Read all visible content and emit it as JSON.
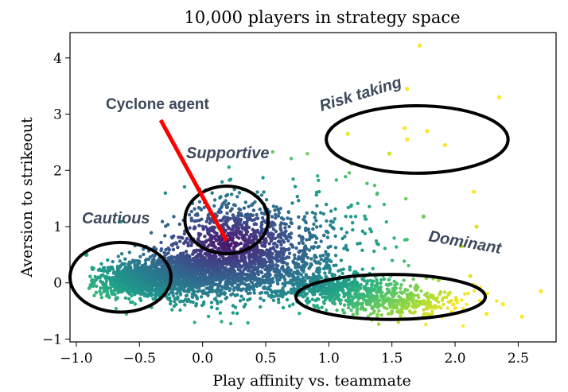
{
  "chart_data": {
    "type": "scatter",
    "title": "10,000 players in strategy space",
    "xlabel": "Play affinity vs. teammate",
    "ylabel": "Aversion to strikeout",
    "xlim": [
      -1.05,
      2.8
    ],
    "ylim": [
      -1.05,
      4.45
    ],
    "xticks": [
      -1.0,
      -0.5,
      0.0,
      0.5,
      1.0,
      1.5,
      2.0,
      2.5
    ],
    "yticks": [
      -1,
      0,
      1,
      2,
      3,
      4
    ],
    "xtick_labels": [
      "−1.0",
      "−0.5",
      "0.0",
      "0.5",
      "1.0",
      "1.5",
      "2.0",
      "2.5"
    ],
    "ytick_labels": [
      "−1",
      "0",
      "1",
      "2",
      "3",
      "4"
    ],
    "grid": false,
    "colormap": "viridis",
    "colors": {
      "annotation_text": "#3d4a5c",
      "arrow": "#ff0000",
      "ellipse": "#000000"
    },
    "regions": [
      {
        "label": "Cautious",
        "center": [
          -0.65,
          0.1
        ],
        "x_radius": 0.4,
        "y_radius": 0.62
      },
      {
        "label": "Supportive",
        "center": [
          0.19,
          1.12
        ],
        "x_radius": 0.33,
        "y_radius": 0.6
      },
      {
        "label": "Risk taking",
        "center": [
          1.7,
          2.55
        ],
        "x_radius": 0.72,
        "y_radius": 0.6
      },
      {
        "label": "Dominant",
        "center": [
          1.49,
          -0.25
        ],
        "x_radius": 0.75,
        "y_radius": 0.4
      }
    ],
    "arrow_label": "Cyclone agent",
    "arrow_target": [
      0.19,
      0.75
    ],
    "highlight_points": [
      {
        "x": 1.72,
        "y": 4.22
      },
      {
        "x": 1.62,
        "y": 3.45
      },
      {
        "x": 2.35,
        "y": 3.3
      },
      {
        "x": 1.15,
        "y": 2.65
      },
      {
        "x": 1.6,
        "y": 2.75
      },
      {
        "x": 1.78,
        "y": 2.7
      },
      {
        "x": 1.62,
        "y": 2.55
      },
      {
        "x": 1.92,
        "y": 2.45
      },
      {
        "x": 1.48,
        "y": 2.3
      },
      {
        "x": 1.18,
        "y": 2.12
      },
      {
        "x": 2.15,
        "y": 1.62
      },
      {
        "x": 1.75,
        "y": 1.18
      },
      {
        "x": 2.17,
        "y": 1.0
      },
      {
        "x": 2.05,
        "y": 0.65
      },
      {
        "x": 2.68,
        "y": -0.15
      },
      {
        "x": 2.53,
        "y": -0.6
      },
      {
        "x": 2.38,
        "y": -0.38
      },
      {
        "x": 2.25,
        "y": -0.55
      },
      {
        "x": 2.0,
        "y": -0.45
      },
      {
        "x": 1.95,
        "y": -0.2
      },
      {
        "x": 2.12,
        "y": 0.12
      },
      {
        "x": 1.87,
        "y": 0.05
      },
      {
        "x": -0.92,
        "y": 0.5
      }
    ],
    "clusters": [
      {
        "cx": -0.5,
        "cy": 0.05,
        "sx": 0.18,
        "sy": 0.15,
        "n": 900
      },
      {
        "cx": -0.15,
        "cy": 0.15,
        "sx": 0.2,
        "sy": 0.2,
        "n": 800
      },
      {
        "cx": 0.2,
        "cy": 0.35,
        "sx": 0.25,
        "sy": 0.35,
        "n": 900
      },
      {
        "cx": 0.3,
        "cy": 1.0,
        "sx": 0.22,
        "sy": 0.32,
        "n": 350
      },
      {
        "cx": 0.7,
        "cy": 0.4,
        "sx": 0.25,
        "sy": 0.35,
        "n": 400
      },
      {
        "cx": 1.05,
        "cy": -0.1,
        "sx": 0.25,
        "sy": 0.12,
        "n": 450
      },
      {
        "cx": 1.5,
        "cy": -0.35,
        "sx": 0.25,
        "sy": 0.12,
        "n": 300
      },
      {
        "cx": 1.0,
        "cy": 0.9,
        "sx": 0.3,
        "sy": 0.5,
        "n": 90
      },
      {
        "cx": 1.8,
        "cy": -0.3,
        "sx": 0.25,
        "sy": 0.18,
        "n": 60
      }
    ]
  }
}
